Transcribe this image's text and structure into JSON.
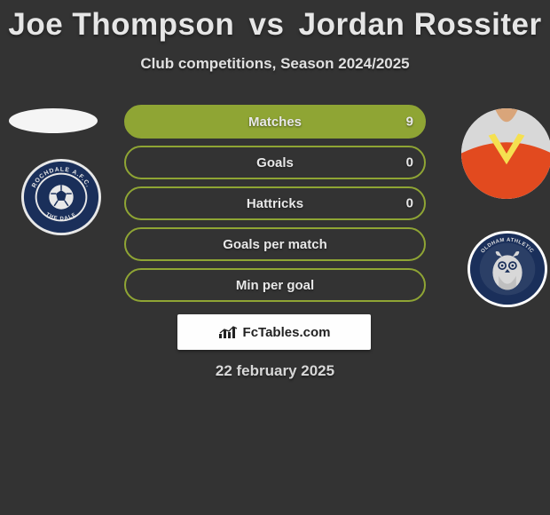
{
  "title": {
    "player1": "Joe Thompson",
    "vs": "vs",
    "player2": "Jordan Rossiter"
  },
  "subtitle": "Club competitions, Season 2024/2025",
  "stats": [
    {
      "label": "Matches",
      "value_right": "9",
      "fill_pct": 100,
      "fill_color": "#8fa534",
      "border_color": "#8fa534"
    },
    {
      "label": "Goals",
      "value_right": "0",
      "fill_pct": 0,
      "fill_color": "#8fa534",
      "border_color": "#8fa534"
    },
    {
      "label": "Hattricks",
      "value_right": "0",
      "fill_pct": 0,
      "fill_color": "#8fa534",
      "border_color": "#8fa534"
    },
    {
      "label": "Goals per match",
      "value_right": "",
      "fill_pct": 0,
      "fill_color": "#8fa534",
      "border_color": "#8fa534"
    },
    {
      "label": "Min per goal",
      "value_right": "",
      "fill_pct": 0,
      "fill_color": "#8fa534",
      "border_color": "#8fa534"
    }
  ],
  "logo": {
    "text": "FcTables.com"
  },
  "date": "22 february 2025",
  "crest_left": {
    "name": "rochdale-afc-crest",
    "outer_color": "#e8e8e8",
    "ring_color": "#1a2f5a",
    "inner_color": "#1a2f5a",
    "text_top": "ROCHDALE",
    "text_bottom": "THE DALE",
    "ball_color": "#e8e8e8"
  },
  "crest_right": {
    "name": "oldham-athletic-crest",
    "outer_color": "#ffffff",
    "ring_color": "#1a2f5a",
    "inner_color": "#1a2f5a",
    "owl_color": "#d8d8d8"
  },
  "avatar_right": {
    "shirt_color": "#e24a1f",
    "trim_color": "#f5e050",
    "neck_color": "#d9a57a"
  },
  "colors": {
    "background": "#333333",
    "text_light": "#e6e6e6",
    "logo_bg": "#fefefe"
  }
}
